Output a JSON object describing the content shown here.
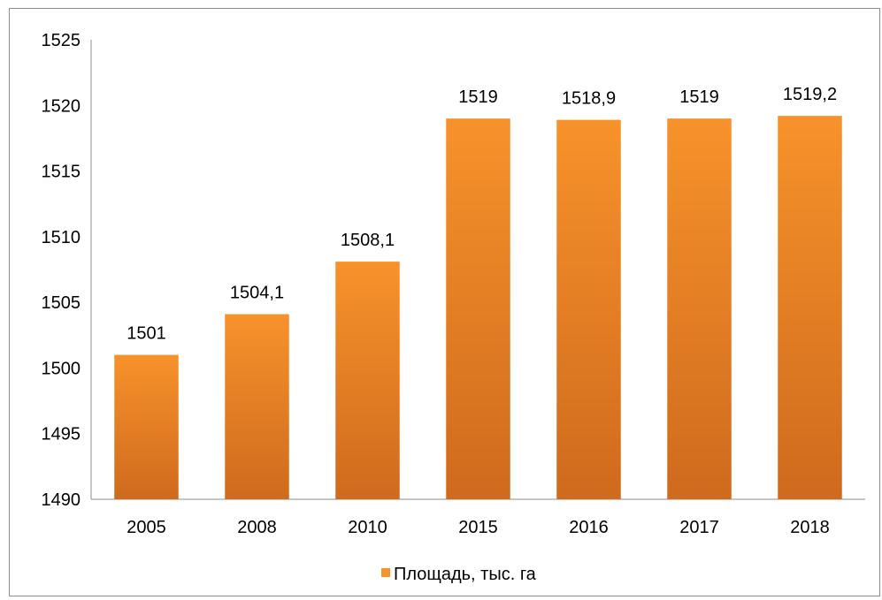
{
  "chart_data": {
    "type": "bar",
    "categories": [
      "2005",
      "2008",
      "2010",
      "2015",
      "2016",
      "2017",
      "2018"
    ],
    "series": [
      {
        "name": "Площадь, тыс. га",
        "values": [
          1501,
          1504.1,
          1508.1,
          1519,
          1518.9,
          1519,
          1519.2
        ],
        "labels": [
          "1501",
          "1504,1",
          "1508,1",
          "1519",
          "1518,9",
          "1519",
          "1519,2"
        ],
        "color": "#f7922b",
        "color_dark": "#cf6a1e"
      }
    ],
    "ylim": [
      1490,
      1525
    ],
    "yticks": [
      "1490",
      "1495",
      "1500",
      "1505",
      "1510",
      "1515",
      "1520",
      "1525"
    ],
    "grid": false,
    "legend_position": "bottom"
  }
}
